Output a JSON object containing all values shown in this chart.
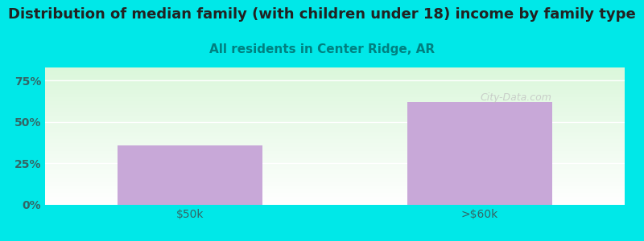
{
  "title": "Distribution of median family (with children under 18) income by family type",
  "subtitle": "All residents in Center Ridge, AR",
  "categories": [
    "$50k",
    ">$60k"
  ],
  "values": [
    36,
    62
  ],
  "bar_color": "#c8a8d8",
  "title_fontsize": 13,
  "subtitle_fontsize": 11,
  "subtitle_color": "#008080",
  "title_color": "#222222",
  "fig_bg_color": "#00e8e8",
  "yticks": [
    0,
    25,
    50,
    75
  ],
  "ylim": [
    0,
    83
  ],
  "tick_color": "#336666",
  "watermark": "City-Data.com"
}
